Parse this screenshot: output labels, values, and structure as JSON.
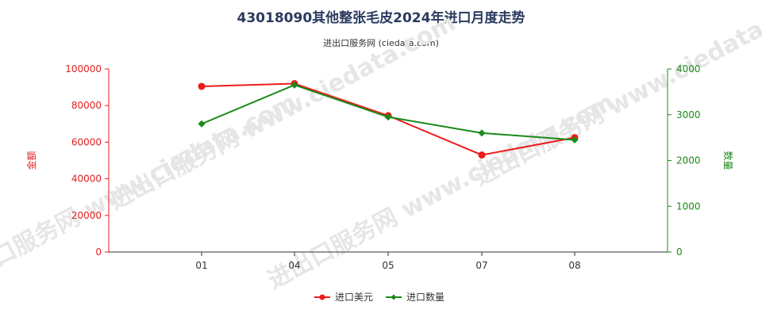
{
  "colors": {
    "usd": "#ee1c1c",
    "qty": "#1a8a1a",
    "title": "#2a3b5f",
    "axis": "#333333"
  },
  "watermark": "进出口服务网 www.ciedata.com",
  "chart_data": {
    "type": "line",
    "title": "43018090其他整张毛皮2024年进口月度走势",
    "subtitle": "进出口服务网 (ciedata.com)",
    "categories": [
      "01",
      "04",
      "05",
      "07",
      "08"
    ],
    "y_left": {
      "label": "金额",
      "ticks": [
        "0",
        "20000",
        "40000",
        "60000",
        "80000",
        "100000"
      ],
      "range": [
        0,
        100000
      ]
    },
    "y_right": {
      "label": "数量",
      "ticks": [
        "0",
        "1000",
        "2000",
        "3000",
        "4000"
      ],
      "range": [
        0,
        4000
      ]
    },
    "series": [
      {
        "name": "进口美元",
        "axis": "left",
        "marker": "circle",
        "values": [
          90500,
          92000,
          74500,
          53000,
          62500
        ]
      },
      {
        "name": "进口数量",
        "axis": "right",
        "marker": "diamond",
        "values": [
          2800,
          3650,
          2950,
          2600,
          2450
        ]
      }
    ],
    "grid": false,
    "legend": "bottom-center"
  }
}
